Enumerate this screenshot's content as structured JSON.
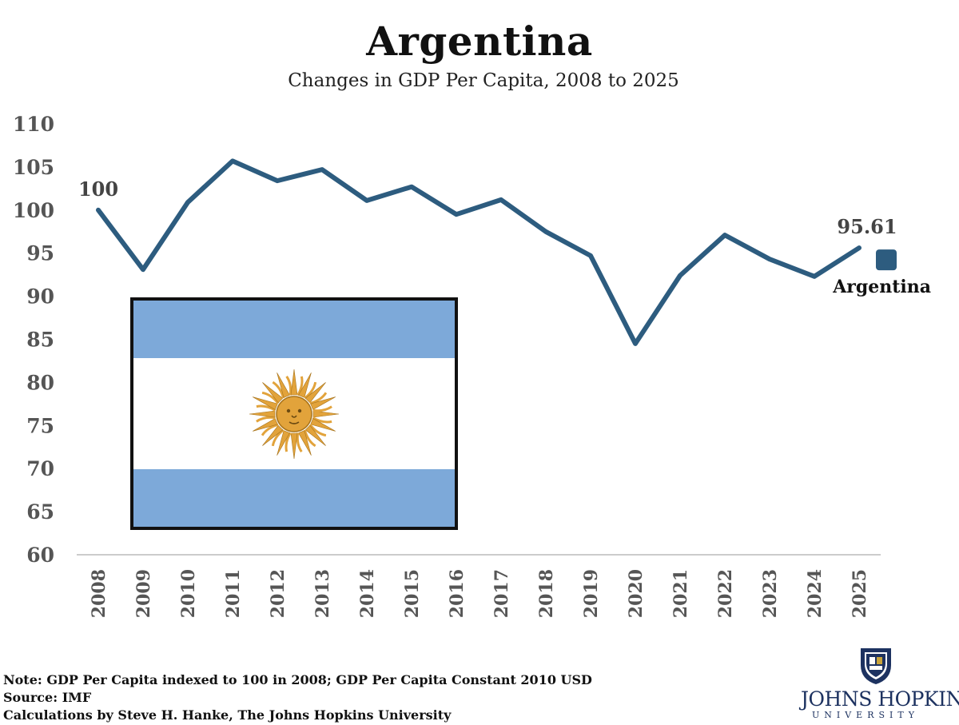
{
  "title": "Argentina",
  "subtitle": "Changes in GDP Per Capita, 2008 to 2025",
  "notes": {
    "line1": "Note: GDP Per Capita indexed to 100 in 2008; GDP Per Capita Constant 2010 USD",
    "line2": "Source: IMF",
    "line3": "Calculations by Steve H. Hanke, The Johns Hopkins University"
  },
  "logo": {
    "name": "Johns Hopkins",
    "subname": "UNIVERSITY",
    "name_display": "JOHNS HOPKINS",
    "shield_icon": "jhu-shield-icon"
  },
  "flag": {
    "icon": "argentina-flag-icon",
    "stripe_color": "#7da9d9",
    "sun_color": "#e2a33b"
  },
  "colors": {
    "line": "#2d5c7f",
    "axis": "#cccccc",
    "ticks": "#555555"
  },
  "chart_data": {
    "type": "line",
    "title": "Argentina",
    "subtitle": "Changes in GDP Per Capita, 2008 to 2025",
    "xlabel": "",
    "ylabel": "",
    "ylim": [
      60,
      110
    ],
    "yticks": [
      60,
      65,
      70,
      75,
      80,
      85,
      90,
      95,
      100,
      105,
      110
    ],
    "grid": false,
    "legend": "right",
    "categories": [
      "2008",
      "2009",
      "2010",
      "2011",
      "2012",
      "2013",
      "2014",
      "2015",
      "2016",
      "2017",
      "2018",
      "2019",
      "2020",
      "2021",
      "2022",
      "2023",
      "2024",
      "2025"
    ],
    "series": [
      {
        "name": "Argentina",
        "values": [
          100,
          93.1,
          100.9,
          105.7,
          103.4,
          104.7,
          101.1,
          102.7,
          99.5,
          101.2,
          97.5,
          94.7,
          84.5,
          92.4,
          97.1,
          94.3,
          92.3,
          95.61
        ]
      }
    ],
    "annotations": [
      {
        "category": "2008",
        "text": "100"
      },
      {
        "category": "2025",
        "text": "95.61"
      }
    ]
  }
}
